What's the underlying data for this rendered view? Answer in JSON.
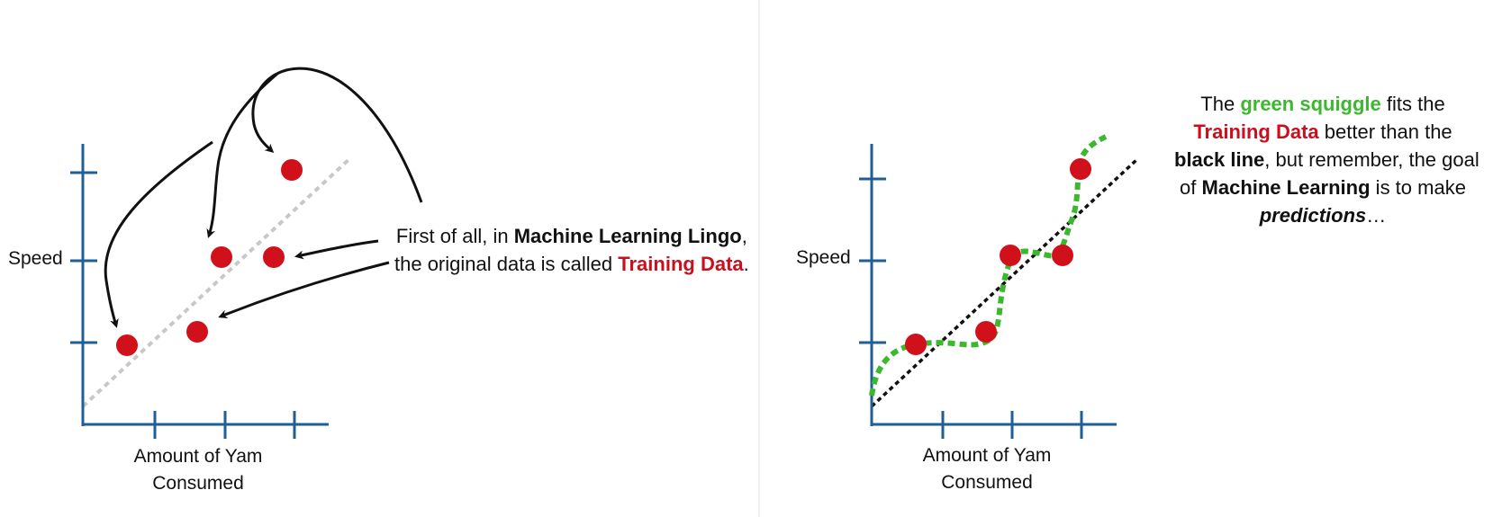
{
  "colors": {
    "axis": "#1f5e96",
    "point": "#d0111b",
    "green": "#3cb82e",
    "red_text": "#c8101e",
    "dotted_line_left": "#c8c8c8",
    "dotted_line_right": "#111111"
  },
  "left_panel": {
    "y_axis_label": "Speed",
    "x_axis_label_line1": "Amount of Yam",
    "x_axis_label_line2": "Consumed",
    "caption": {
      "line1": {
        "pre": "First of all, in ",
        "bold": "Machine Learning Lingo",
        "post": ","
      },
      "line2": {
        "pre": "the original data is called ",
        "red": "Training Data",
        "post": "."
      }
    }
  },
  "right_panel": {
    "y_axis_label": "Speed",
    "x_axis_label_line1": "Amount of Yam",
    "x_axis_label_line2": "Consumed",
    "caption": {
      "line1": {
        "pre": "The ",
        "green": "green squiggle",
        "post": " fits the"
      },
      "line2": {
        "red": "Training Data",
        "post": " better than the"
      },
      "line3": {
        "bold": "black line",
        "post": ", but remember, the goal"
      },
      "line4": {
        "pre": "of ",
        "bold": "Machine Learning",
        "post": " is to make"
      },
      "line5": {
        "italic": "predictions",
        "post": "…"
      }
    }
  },
  "icons": {
    "arrow": "curved-arrow-icon"
  }
}
